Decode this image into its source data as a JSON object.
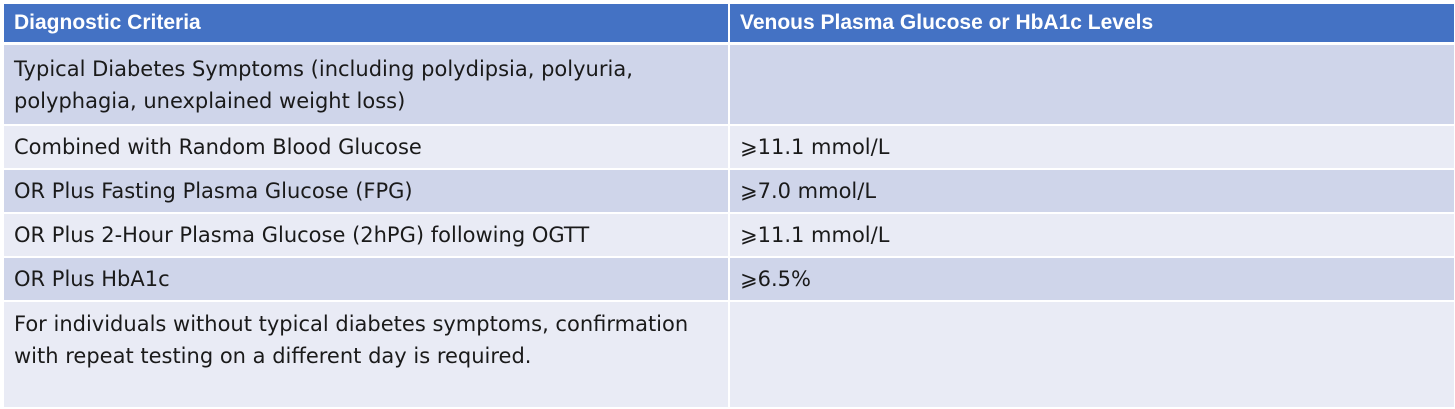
{
  "table": {
    "headers": [
      "Diagnostic Criteria",
      "Venous Plasma Glucose or HbA1c Levels"
    ],
    "rows": [
      [
        "Typical Diabetes Symptoms (including polydipsia, polyuria, polyphagia, unexplained weight loss)",
        ""
      ],
      [
        "Combined with Random Blood Glucose",
        "⩾11.1 mmol/L"
      ],
      [
        "OR Plus Fasting Plasma Glucose (FPG)",
        "⩾7.0 mmol/L"
      ],
      [
        "OR Plus 2-Hour Plasma Glucose (2hPG) following OGTT",
        "⩾11.1 mmol/L"
      ],
      [
        "OR Plus HbA1c",
        "⩾6.5%"
      ],
      [
        "For individuals without typical diabetes symptoms, confirmation with repeat testing on a different day is required.",
        ""
      ]
    ]
  },
  "colors": {
    "header_bg": "#4472c4",
    "row_dark": "#cfd5ea",
    "row_light": "#e9ebf5"
  }
}
